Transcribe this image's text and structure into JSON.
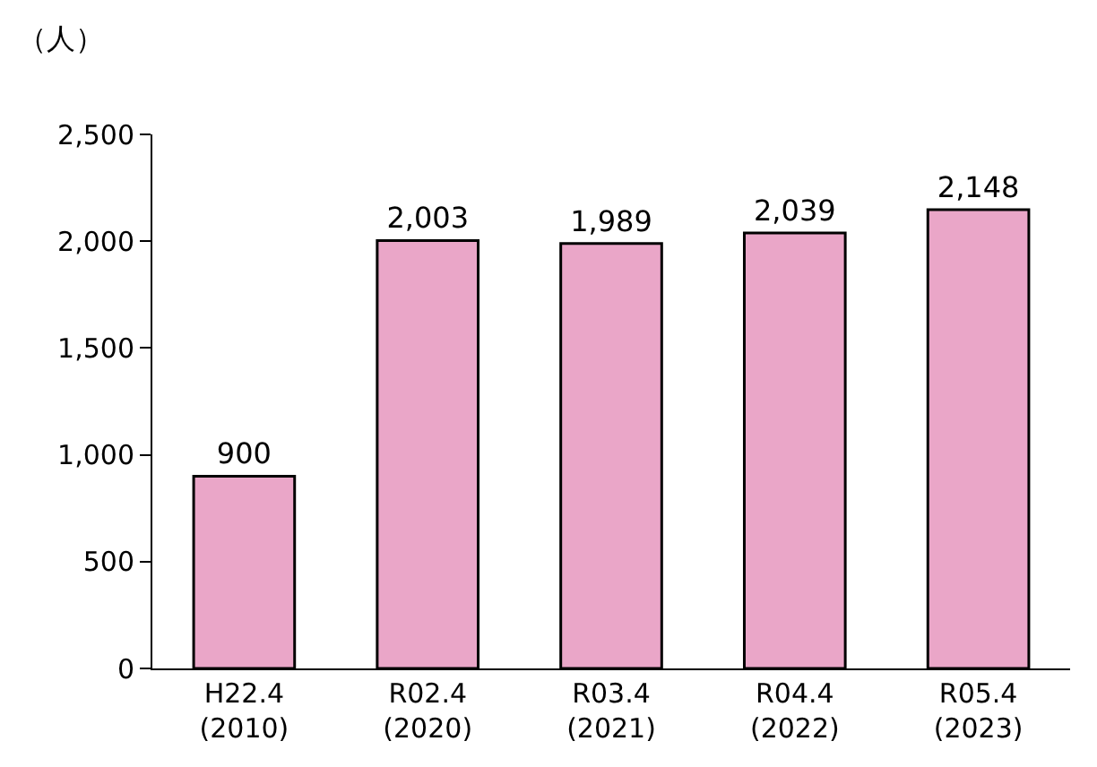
{
  "chart_data": {
    "type": "bar",
    "ylabel": "（人）",
    "categories": [
      "H22.4\n(2010)",
      "R02.4\n(2020)",
      "R03.4\n(2021)",
      "R04.4\n(2022)",
      "R05.4\n(2023)"
    ],
    "values": [
      900,
      2003,
      1989,
      2039,
      2148
    ],
    "value_labels": [
      "900",
      "2,003",
      "1,989",
      "2,039",
      "2,148"
    ],
    "color": "#eaa6c8",
    "ylim": [
      0,
      2500
    ],
    "yticks": [
      0,
      {
        "value": 500,
        "label": "500"
      },
      {
        "value": 1000,
        "label": "1,000"
      },
      {
        "value": 1500,
        "label": "1,500"
      },
      {
        "value": 2000,
        "label": "2,000"
      },
      {
        "value": 2500,
        "label": "2,500"
      }
    ]
  }
}
